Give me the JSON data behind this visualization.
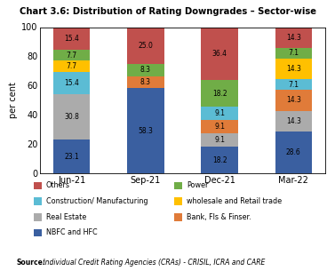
{
  "title": "Chart 3.6: Distribution of Rating Downgrades – Sector-wise",
  "categories": [
    "Jun-21",
    "Sep-21",
    "Dec-21",
    "Mar-22"
  ],
  "series": [
    {
      "label": "NBFC and HFC",
      "color": "#3a5fa0",
      "values": [
        23.1,
        58.3,
        18.2,
        28.6
      ]
    },
    {
      "label": "Real Estate",
      "color": "#ababab",
      "values": [
        30.8,
        0.0,
        9.1,
        14.3
      ]
    },
    {
      "label": "Bank, FIs & Finser.",
      "color": "#e07b39",
      "values": [
        0.0,
        8.3,
        9.1,
        14.3
      ]
    },
    {
      "label": "Construction/ Manufacturing",
      "color": "#5bbcd4",
      "values": [
        15.4,
        0.0,
        9.1,
        7.1
      ]
    },
    {
      "label": "wholesale and Retail trade",
      "color": "#ffc000",
      "values": [
        7.7,
        0.0,
        0.0,
        14.3
      ]
    },
    {
      "label": "Power",
      "color": "#70ad47",
      "values": [
        7.7,
        8.3,
        18.2,
        7.1
      ]
    },
    {
      "label": "Others",
      "color": "#c0504d",
      "values": [
        15.4,
        25.0,
        36.4,
        14.3
      ]
    }
  ],
  "ylabel": "per cent",
  "ylim": [
    0,
    100
  ],
  "yticks": [
    0,
    20,
    40,
    60,
    80,
    100
  ],
  "source_bold": "Source:",
  "source_rest": " Individual Credit Rating Agencies (CRAs) - CRISIL, ICRA and CARE",
  "legend_pairs": [
    [
      6,
      5
    ],
    [
      3,
      4
    ],
    [
      1,
      2
    ],
    [
      0,
      null
    ]
  ],
  "bar_width": 0.5
}
